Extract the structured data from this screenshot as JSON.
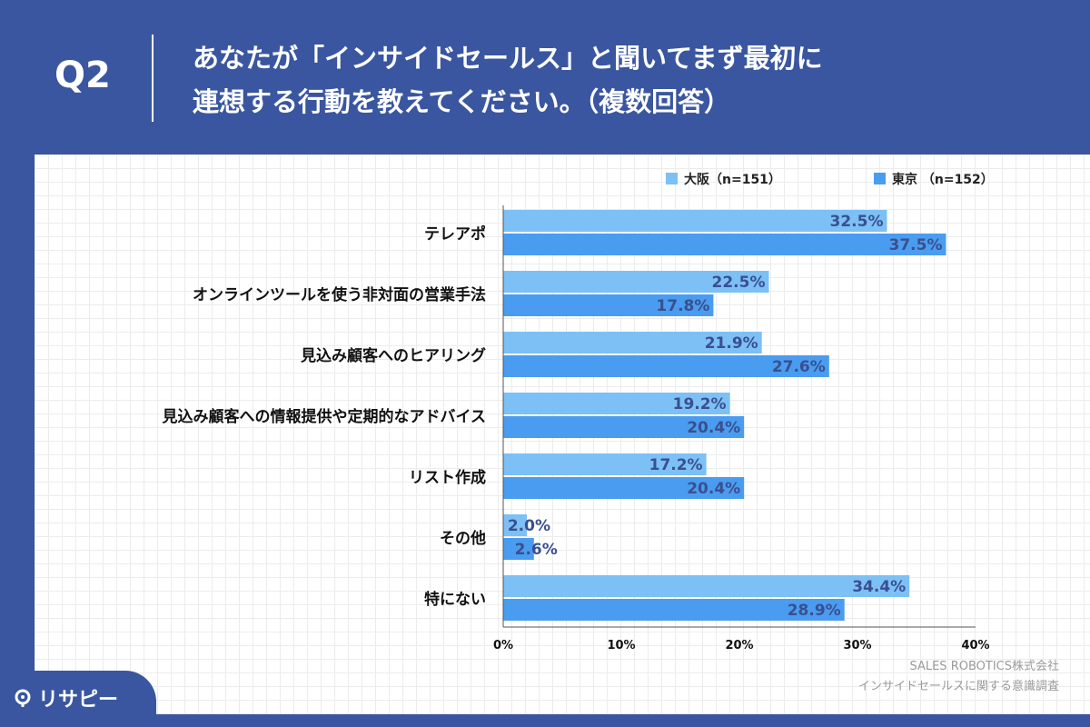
{
  "header": {
    "qnum": "Q2",
    "title_line1": "あなたが「インサイドセールス」と聞いてまず最初に",
    "title_line2": "連想する行動を教えてください。（複数回答）"
  },
  "credit": {
    "line1": "SALES ROBOTICS株式会社",
    "line2": "インサイドセールスに関する意識調査"
  },
  "logo": {
    "text": "リサピー",
    "icon": "magnifier-logo-icon"
  },
  "colors": {
    "osaka": "#7cc0f6",
    "tokyo": "#4a9cf0",
    "label": "#3a4f8f",
    "background": "#3a56a0"
  },
  "chart_data": {
    "type": "bar",
    "orientation": "horizontal",
    "categories": [
      "テレアポ",
      "オンラインツールを使う非対面の営業手法",
      "見込み顧客へのヒアリング",
      "見込み顧客への情報提供や定期的なアドバイス",
      "リスト作成",
      "その他",
      "特にない"
    ],
    "series": [
      {
        "name": "大阪（n=151）",
        "values": [
          32.5,
          22.5,
          21.9,
          19.2,
          17.2,
          2.0,
          34.4
        ]
      },
      {
        "name": "東京 （n=152）",
        "values": [
          37.5,
          17.8,
          27.6,
          20.4,
          20.4,
          2.6,
          28.9
        ]
      }
    ],
    "xlim": [
      0,
      40
    ],
    "xticks": [
      "0%",
      "10%",
      "20%",
      "30%",
      "40%"
    ],
    "legend": "top-right",
    "grid": false
  }
}
